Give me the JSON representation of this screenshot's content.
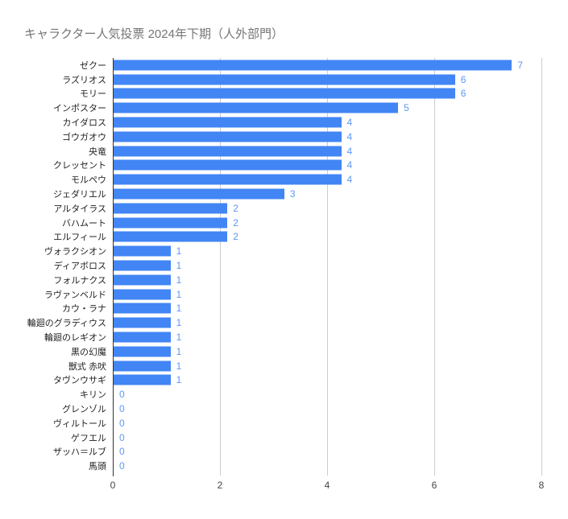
{
  "chart_data": {
    "type": "bar",
    "orientation": "horizontal",
    "title": "キャラクター人気投票 2024年下期（人外部門）",
    "categories": [
      "ゼクー",
      "ラズリオス",
      "モリー",
      "インポスター",
      "カイダロス",
      "ゴウガオウ",
      "央竜",
      "クレッセント",
      "モルペウ",
      "ジェダリエル",
      "アルタイラス",
      "バハムート",
      "エルフィール",
      "ヴォラクシオン",
      "ディアボロス",
      "フォルナクス",
      "ラヴァンベルド",
      "カウ・ラナ",
      "輪廻のグラディウス",
      "輪廻のレギオン",
      "黒の幻魔",
      "獣式 赤吠",
      "タヴンウサギ",
      "キリン",
      "グレンゾル",
      "ヴィルトール",
      "ゲフエル",
      "ザッハ＝ルブ",
      "馬頭"
    ],
    "values": [
      7,
      6,
      6,
      5,
      4,
      4,
      4,
      4,
      4,
      3,
      2,
      2,
      2,
      1,
      1,
      1,
      1,
      1,
      1,
      1,
      1,
      1,
      1,
      0,
      0,
      0,
      0,
      0,
      0
    ],
    "xlabel": "",
    "ylabel": "",
    "xlim": [
      0,
      8
    ],
    "xticks": [
      0,
      2,
      4,
      6,
      8
    ],
    "grid": true,
    "legend": "none",
    "colors": {
      "bar": "#4285f4",
      "value_label": "#5e97f6",
      "title": "#757575",
      "category_label": "#222222",
      "tick_label": "#444444",
      "gridline": "#cccccc",
      "axis_line": "#333333",
      "background": "#ffffff"
    }
  }
}
